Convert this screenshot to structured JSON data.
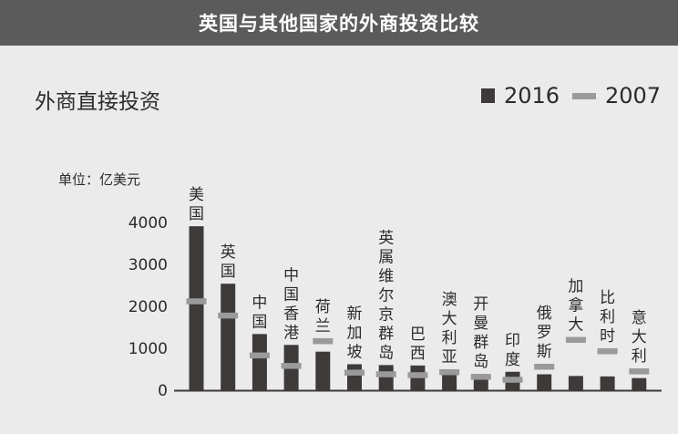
{
  "header": {
    "title": "英国与其他国家的外商投资比较"
  },
  "colors": {
    "bar_2016": "#3e3a39",
    "mark_2007": "#9a9a9a",
    "header_bg": "#5b5b5b",
    "background": "#ebebeb"
  },
  "chart_data": {
    "type": "bar",
    "title": "外商直接投资",
    "ylabel": "单位：亿美元",
    "ylim": [
      0,
      4000
    ],
    "yticks": [
      0,
      1000,
      2000,
      3000,
      4000
    ],
    "categories": [
      "美国",
      "英国",
      "中国",
      "中国香港",
      "荷兰",
      "新加坡",
      "英属维尔京群岛",
      "巴西",
      "澳大利亚",
      "开曼群岛",
      "印度",
      "俄罗斯",
      "加拿大",
      "比利时",
      "意大利"
    ],
    "series": [
      {
        "name": "2016",
        "style": "bar",
        "values": [
          3910,
          2540,
          1340,
          1080,
          920,
          620,
          600,
          590,
          480,
          390,
          440,
          380,
          340,
          330,
          290
        ]
      },
      {
        "name": "2007",
        "style": "marker",
        "values": [
          2120,
          1780,
          830,
          580,
          1170,
          420,
          380,
          360,
          430,
          320,
          250,
          560,
          1200,
          930,
          450
        ]
      }
    ],
    "legend": [
      "2016",
      "2007"
    ]
  }
}
